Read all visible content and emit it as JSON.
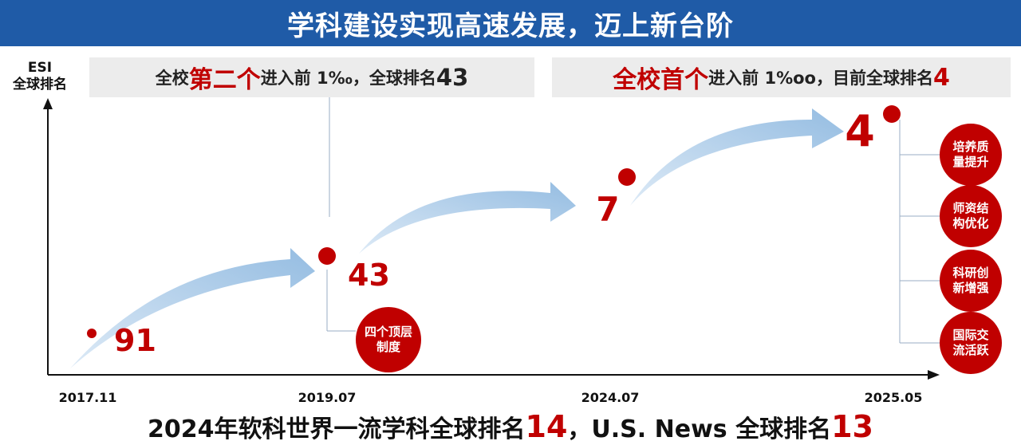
{
  "title": "学科建设实现高速发展，迈上新台阶",
  "y_axis_label_line1": "ESI",
  "y_axis_label_line2": "全球排名",
  "banner1": {
    "prefix": "全校",
    "highlight": "第二个",
    "middle": "进入前 1‰，全球排名",
    "rank": "43"
  },
  "banner2": {
    "highlight": "全校首个",
    "middle": "进入前 1%oo，目前全球排名",
    "rank": "4"
  },
  "milestone_tag": "四个顶层制度",
  "side_tags": [
    "培养质量提升",
    "师资结构优化",
    "科研创新增强",
    "国际交流活跃"
  ],
  "bottom": {
    "part1": "2024年软科世界一流学科全球排名",
    "rank1": "14",
    "part2": "，U.S. News 全球排名",
    "rank2": "13"
  },
  "colors": {
    "title_bg": "#1f5ba7",
    "accent": "#c00000",
    "arrow": "#9dc3e6",
    "banner_bg": "#ececec"
  },
  "chart_data": {
    "type": "line",
    "title": "",
    "xlabel": "",
    "ylabel": "ESI 全球排名",
    "categories": [
      "2017.11",
      "2019.07",
      "2024.07",
      "2025.05"
    ],
    "values": [
      91,
      43,
      7,
      4
    ],
    "labels": [
      "91",
      "43",
      "7",
      "4"
    ],
    "y_inverted": true,
    "grid": false
  }
}
